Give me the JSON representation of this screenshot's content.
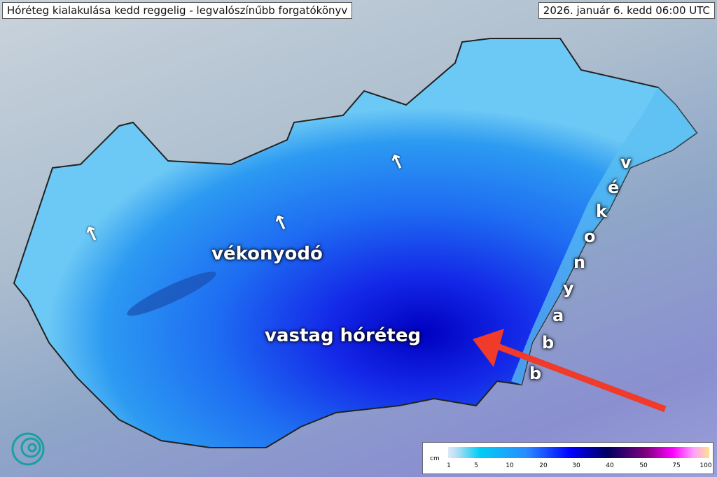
{
  "header": {
    "title": "Hóréteg kialakulása kedd reggelig - legvalószínűbb forgatókönyv",
    "datetime": "2026. január 6. kedd 06:00 UTC"
  },
  "annotations": {
    "thinning_center": "vékonyodó",
    "thick_snow": "vastag hóréteg",
    "thinner_east_letters": [
      "v",
      "é",
      "k",
      "o",
      "n",
      "y",
      "a",
      "b",
      "b"
    ],
    "arrow_color": "#f03a2a"
  },
  "legend": {
    "unit": "cm",
    "ticks": [
      "1",
      "5",
      "10",
      "20",
      "30",
      "40",
      "50",
      "75",
      "100"
    ]
  },
  "colors": {
    "thin": "#7fd2f5",
    "mid": "#1e6cf0",
    "thick": "#0000c8"
  }
}
